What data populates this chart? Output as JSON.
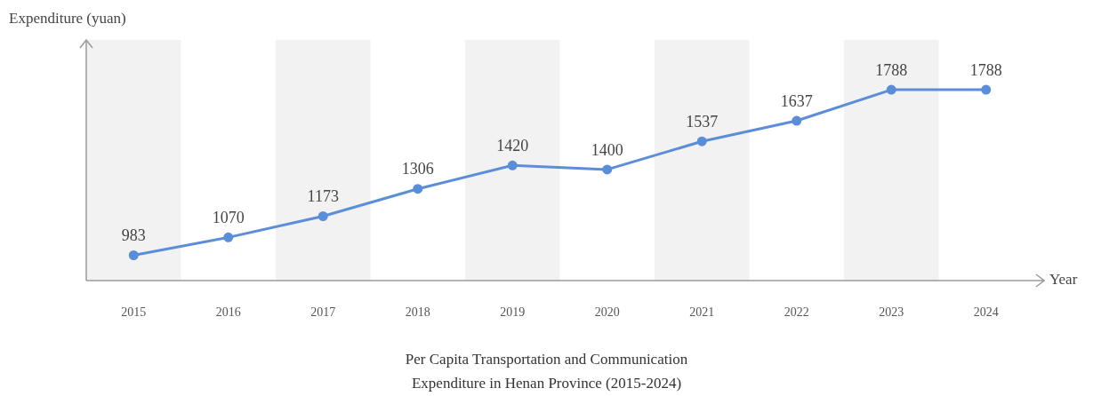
{
  "chart_data": {
    "type": "line",
    "title": "Per Capita Transportation and Communication Expenditure in Henan Province (2015-2024)",
    "xlabel": "Year",
    "ylabel": "Expenditure (yuan)",
    "categories": [
      "2015",
      "2016",
      "2017",
      "2018",
      "2019",
      "2020",
      "2021",
      "2022",
      "2023",
      "2024"
    ],
    "series": [
      {
        "color": "#5b8dd9",
        "values": [
          983,
          1070,
          1173,
          1306,
          1420,
          1400,
          1537,
          1637,
          1788,
          1788
        ]
      }
    ],
    "ylim": [
      860,
      2030
    ],
    "tick_labels": "x",
    "data_labels": true,
    "marker": "circle",
    "line_style": "solid",
    "legend": false,
    "bands": [
      {
        "axis": "x",
        "from": "2015",
        "to": "2015",
        "color": "#f2f2f2"
      },
      {
        "axis": "x",
        "from": "2017",
        "to": "2017",
        "color": "#f2f2f2"
      },
      {
        "axis": "x",
        "from": "2019",
        "to": "2019",
        "color": "#f2f2f2"
      },
      {
        "axis": "x",
        "from": "2021",
        "to": "2021",
        "color": "#f2f2f2"
      },
      {
        "axis": "x",
        "from": "2023",
        "to": "2023",
        "color": "#f2f2f2"
      }
    ]
  }
}
